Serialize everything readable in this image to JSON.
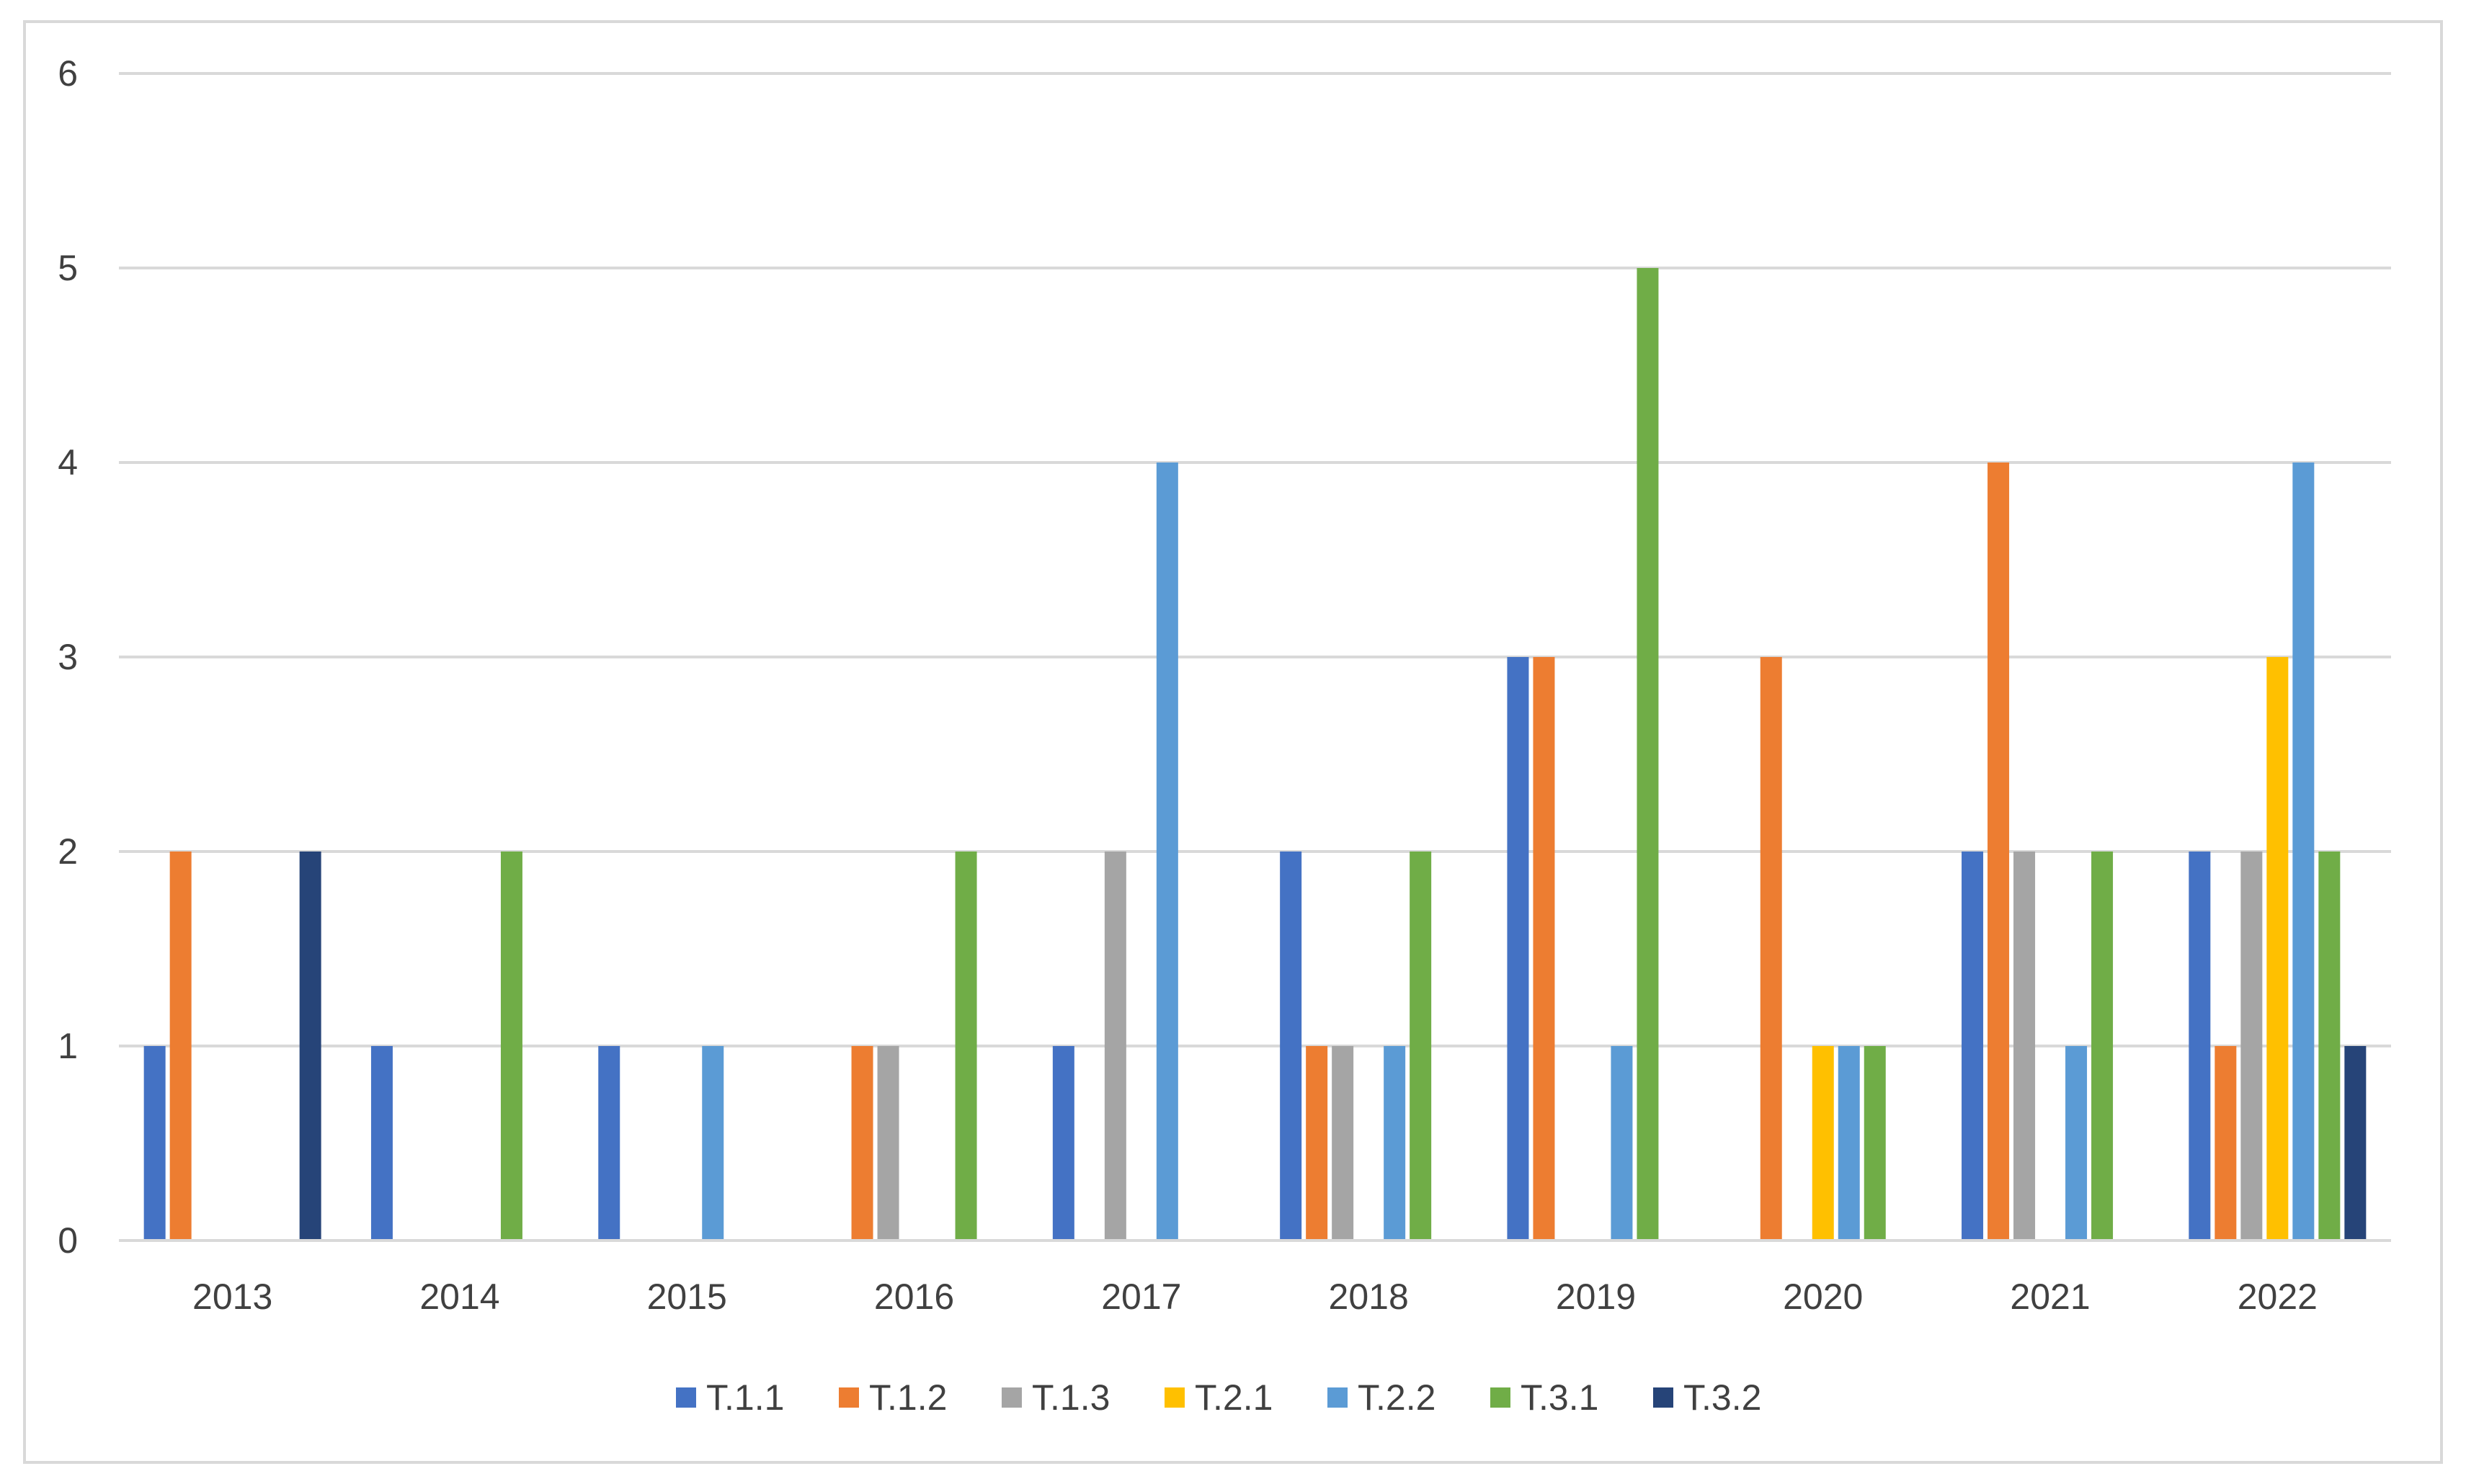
{
  "chart_data": {
    "type": "bar",
    "title": "",
    "xlabel": "",
    "ylabel": "",
    "categories": [
      "2013",
      "2014",
      "2015",
      "2016",
      "2017",
      "2018",
      "2019",
      "2020",
      "2021",
      "2022"
    ],
    "ylim": [
      0,
      6
    ],
    "yticks": [
      0,
      1,
      2,
      3,
      4,
      5,
      6
    ],
    "grid": true,
    "legend_position": "bottom",
    "series": [
      {
        "name": "T.1.1",
        "color": "#4472C4",
        "values": [
          1,
          1,
          1,
          0,
          1,
          2,
          3,
          0,
          2,
          2
        ]
      },
      {
        "name": "T.1.2",
        "color": "#ED7D31",
        "values": [
          2,
          0,
          0,
          1,
          0,
          1,
          3,
          3,
          4,
          1
        ]
      },
      {
        "name": "T.1.3",
        "color": "#A5A5A5",
        "values": [
          0,
          0,
          0,
          1,
          2,
          1,
          0,
          0,
          2,
          2
        ]
      },
      {
        "name": "T.2.1",
        "color": "#FFC000",
        "values": [
          0,
          0,
          0,
          0,
          0,
          0,
          0,
          1,
          0,
          3
        ]
      },
      {
        "name": "T.2.2",
        "color": "#5B9BD5",
        "values": [
          0,
          0,
          1,
          0,
          4,
          1,
          1,
          1,
          1,
          4
        ]
      },
      {
        "name": "T.3.1",
        "color": "#70AD47",
        "values": [
          0,
          2,
          0,
          2,
          0,
          2,
          5,
          1,
          2,
          2
        ]
      },
      {
        "name": "T.3.2",
        "color": "#264478",
        "values": [
          2,
          0,
          0,
          0,
          0,
          0,
          0,
          0,
          0,
          1
        ]
      }
    ]
  }
}
